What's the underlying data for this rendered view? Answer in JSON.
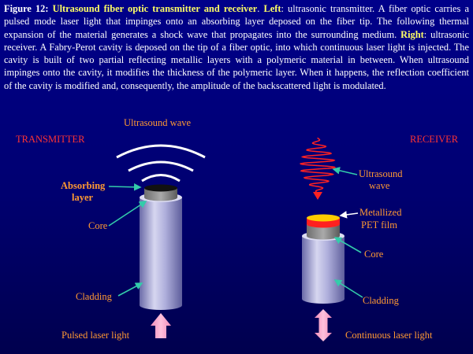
{
  "caption": {
    "fig_label": "Figure 12",
    "colon1": ": ",
    "title": "Ultrasound fiber optic transmitter and receiver",
    "sep1": ". ",
    "left_label": "Left",
    "left_text": ": ultrasonic transmitter. A fiber optic carries a pulsed mode laser light that impinges onto an  absorbing layer deposed on the fiber tip. The following thermal expansion of the material generates a shock wave that propagates into the surrounding medium. ",
    "right_label": "Right",
    "right_text": ": ultrasonic receiver. A Fabry-Perot cavity is deposed on the tip of a fiber optic, into which continuous laser light is injected. The cavity is built of two partial reflecting metallic layers with a polymeric material in between. When ultrasound impinges onto the cavity, it modifies the thickness of the polymeric layer. When it happens,  the reflection coefficient of the cavity is modified and, consequently, the amplitude of the backscattered light is modulated."
  },
  "transmitter": {
    "heading": "TRANSMITTER",
    "wave_label": "Ultrasound wave",
    "absorbing_line1": "Absorbing",
    "absorbing_line2": "layer",
    "core": "Core",
    "cladding": "Cladding",
    "laser": "Pulsed laser light"
  },
  "receiver": {
    "heading": "RECEIVER",
    "wave_line1": "Ultrasound",
    "wave_line2": "wave",
    "film_line1": "Metallized",
    "film_line2": "PET film",
    "core": "Core",
    "cladding": "Cladding",
    "laser": "Continuous laser light"
  },
  "colors": {
    "background": "#000080",
    "caption_text": "#ffffff",
    "caption_highlight": "#ffff66",
    "heading_red": "#ff3333",
    "label_orange": "#ff9933",
    "pointer_arrow": "#33ccaa",
    "laser_arrow": "#ff99cc",
    "wave_red": "#ff2222",
    "wave_arcs": "#ffffff"
  }
}
